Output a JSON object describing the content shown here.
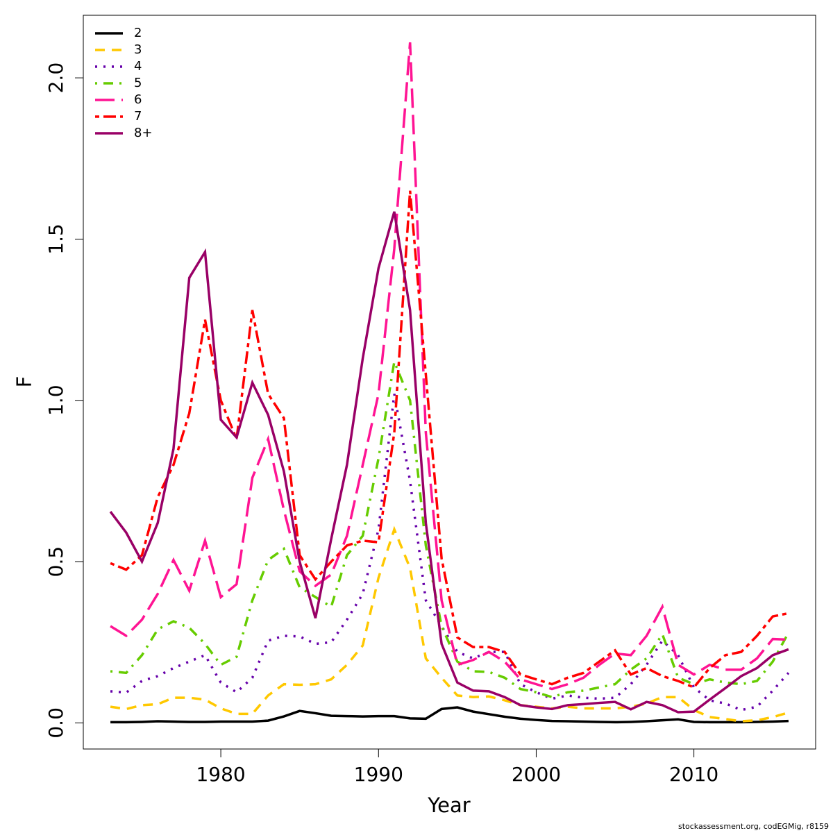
{
  "chart_data": {
    "type": "line",
    "xlabel": "Year",
    "ylabel": "F",
    "footer": "stockassessment.org, codEGMig, r8159",
    "x": [
      1973,
      1974,
      1975,
      1976,
      1977,
      1978,
      1979,
      1980,
      1981,
      1982,
      1983,
      1984,
      1985,
      1986,
      1987,
      1988,
      1989,
      1990,
      1991,
      1992,
      1993,
      1994,
      1995,
      1996,
      1997,
      1998,
      1999,
      2000,
      2001,
      2002,
      2003,
      2004,
      2005,
      2006,
      2007,
      2008,
      2009,
      2010,
      2011,
      2012,
      2013,
      2014,
      2015,
      2016
    ],
    "xlim": [
      1971.28,
      2017.72
    ],
    "xticks": [
      1980,
      1990,
      2000,
      2010
    ],
    "ylim": [
      -0.081,
      2.194
    ],
    "yticks": [
      {
        "value": 0,
        "label": "0.0"
      },
      0.5,
      {
        "value": 1,
        "label": "1.0"
      },
      1.5,
      {
        "value": 2,
        "label": "2.0"
      }
    ],
    "legend": "top-left",
    "series": [
      {
        "name": "2",
        "color": "#000000",
        "linetype": "solid",
        "values": [
          0.002,
          0.002,
          0.003,
          0.005,
          0.004,
          0.003,
          0.003,
          0.004,
          0.004,
          0.004,
          0.007,
          0.02,
          0.037,
          0.03,
          0.022,
          0.021,
          0.02,
          0.021,
          0.021,
          0.014,
          0.013,
          0.043,
          0.048,
          0.035,
          0.027,
          0.019,
          0.013,
          0.009,
          0.006,
          0.005,
          0.004,
          0.003,
          0.002,
          0.003,
          0.005,
          0.008,
          0.011,
          0.003,
          0.002,
          0.002,
          0.002,
          0.003,
          0.004,
          0.006
        ]
      },
      {
        "name": "3",
        "color": "#FFC800",
        "linetype": "dashed",
        "values": [
          0.05,
          0.043,
          0.055,
          0.058,
          0.078,
          0.078,
          0.072,
          0.045,
          0.028,
          0.028,
          0.085,
          0.12,
          0.118,
          0.12,
          0.135,
          0.18,
          0.24,
          0.45,
          0.6,
          0.48,
          0.2,
          0.14,
          0.085,
          0.08,
          0.082,
          0.07,
          0.055,
          0.05,
          0.045,
          0.05,
          0.045,
          0.045,
          0.045,
          0.05,
          0.06,
          0.08,
          0.08,
          0.04,
          0.018,
          0.012,
          0.005,
          0.008,
          0.018,
          0.032
        ]
      },
      {
        "name": "4",
        "color": "#6600AA",
        "linetype": "dotted",
        "values": [
          0.098,
          0.094,
          0.13,
          0.145,
          0.17,
          0.19,
          0.21,
          0.125,
          0.095,
          0.14,
          0.255,
          0.27,
          0.268,
          0.245,
          0.25,
          0.32,
          0.4,
          0.6,
          1.02,
          0.75,
          0.38,
          0.3,
          0.22,
          0.2,
          0.22,
          0.22,
          0.12,
          0.095,
          0.075,
          0.085,
          0.078,
          0.075,
          0.078,
          0.12,
          0.18,
          0.255,
          0.21,
          0.11,
          0.07,
          0.06,
          0.04,
          0.05,
          0.1,
          0.155
        ]
      },
      {
        "name": "5",
        "color": "#66CC00",
        "linetype": "dotdash",
        "values": [
          0.16,
          0.155,
          0.21,
          0.29,
          0.315,
          0.295,
          0.245,
          0.18,
          0.205,
          0.38,
          0.505,
          0.54,
          0.42,
          0.39,
          0.36,
          0.52,
          0.58,
          0.82,
          1.12,
          1.0,
          0.55,
          0.3,
          0.19,
          0.16,
          0.158,
          0.14,
          0.105,
          0.095,
          0.08,
          0.095,
          0.1,
          0.11,
          0.12,
          0.165,
          0.2,
          0.275,
          0.14,
          0.12,
          0.135,
          0.125,
          0.12,
          0.13,
          0.19,
          0.28
        ]
      },
      {
        "name": "6",
        "color": "#FF1493",
        "linetype": "longdash",
        "values": [
          0.3,
          0.27,
          0.32,
          0.4,
          0.505,
          0.41,
          0.565,
          0.39,
          0.43,
          0.76,
          0.88,
          0.66,
          0.47,
          0.425,
          0.46,
          0.58,
          0.8,
          1.02,
          1.47,
          2.11,
          0.9,
          0.38,
          0.18,
          0.195,
          0.22,
          0.19,
          0.135,
          0.12,
          0.105,
          0.12,
          0.14,
          0.18,
          0.215,
          0.21,
          0.27,
          0.36,
          0.18,
          0.15,
          0.18,
          0.165,
          0.165,
          0.2,
          0.26,
          0.258
        ]
      },
      {
        "name": "7",
        "color": "#FF0000",
        "linetype": "twodash",
        "values": [
          0.495,
          0.475,
          0.52,
          0.7,
          0.8,
          0.96,
          1.25,
          1.0,
          0.88,
          1.28,
          1.02,
          0.945,
          0.52,
          0.445,
          0.5,
          0.55,
          0.565,
          0.56,
          0.9,
          1.65,
          1.08,
          0.51,
          0.265,
          0.235,
          0.235,
          0.22,
          0.15,
          0.135,
          0.12,
          0.14,
          0.155,
          0.19,
          0.225,
          0.15,
          0.17,
          0.145,
          0.13,
          0.11,
          0.17,
          0.21,
          0.22,
          0.27,
          0.33,
          0.34
        ]
      },
      {
        "name": "8+",
        "color": "#990066",
        "linetype": "solid",
        "values": [
          0.655,
          0.59,
          0.5,
          0.62,
          0.85,
          1.38,
          1.46,
          0.94,
          0.885,
          1.055,
          0.955,
          0.78,
          0.5,
          0.325,
          0.57,
          0.8,
          1.13,
          1.41,
          1.585,
          1.28,
          0.62,
          0.245,
          0.125,
          0.1,
          0.098,
          0.08,
          0.055,
          0.048,
          0.043,
          0.055,
          0.058,
          0.062,
          0.065,
          0.042,
          0.065,
          0.055,
          0.033,
          0.035,
          0.072,
          0.108,
          0.145,
          0.17,
          0.21,
          0.228
        ]
      }
    ]
  }
}
